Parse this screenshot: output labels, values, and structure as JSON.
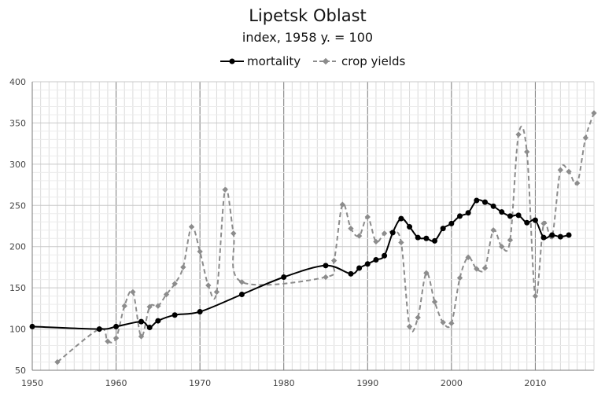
{
  "chart_data": {
    "type": "line",
    "title": "Lipetsk Oblast",
    "subtitle": "index, 1958 y. = 100",
    "xlabel": "",
    "ylabel": "",
    "xlim": [
      1950,
      2017
    ],
    "ylim": [
      50,
      400
    ],
    "x_ticks": [
      "1950",
      "1960",
      "1970",
      "1980",
      "1990",
      "2000",
      "2010"
    ],
    "y_ticks": [
      "50",
      "100",
      "150",
      "200",
      "250",
      "300",
      "350",
      "400"
    ],
    "grid": "on",
    "legend_position": "top",
    "series": [
      {
        "name": "mortality",
        "color": "#000000",
        "style": "solid",
        "marker": "circle",
        "points": [
          [
            1950,
            103
          ],
          [
            1958,
            100
          ],
          [
            1960,
            103
          ],
          [
            1963,
            109
          ],
          [
            1964,
            102
          ],
          [
            1965,
            110
          ],
          [
            1967,
            117
          ],
          [
            1970,
            121
          ],
          [
            1975,
            142
          ],
          [
            1980,
            163
          ],
          [
            1985,
            177
          ],
          [
            1988,
            167
          ],
          [
            1989,
            174
          ],
          [
            1990,
            179
          ],
          [
            1991,
            184
          ],
          [
            1992,
            189
          ],
          [
            1993,
            217
          ],
          [
            1994,
            234
          ],
          [
            1995,
            224
          ],
          [
            1996,
            211
          ],
          [
            1997,
            210
          ],
          [
            1998,
            207
          ],
          [
            1999,
            222
          ],
          [
            2000,
            228
          ],
          [
            2001,
            237
          ],
          [
            2002,
            241
          ],
          [
            2003,
            256
          ],
          [
            2004,
            254
          ],
          [
            2005,
            249
          ],
          [
            2006,
            242
          ],
          [
            2007,
            237
          ],
          [
            2008,
            238
          ],
          [
            2009,
            229
          ],
          [
            2010,
            232
          ],
          [
            2011,
            211
          ],
          [
            2012,
            214
          ],
          [
            2013,
            212
          ],
          [
            2014,
            214
          ]
        ]
      },
      {
        "name": "crop yields",
        "color": "#8c8c8c",
        "style": "dashed",
        "marker": "diamond",
        "points": [
          [
            1953,
            60
          ],
          [
            1958,
            100
          ],
          [
            1959,
            85
          ],
          [
            1960,
            89
          ],
          [
            1961,
            128
          ],
          [
            1962,
            145
          ],
          [
            1963,
            91
          ],
          [
            1964,
            127
          ],
          [
            1965,
            128
          ],
          [
            1966,
            142
          ],
          [
            1967,
            155
          ],
          [
            1968,
            175
          ],
          [
            1969,
            224
          ],
          [
            1970,
            194
          ],
          [
            1971,
            153
          ],
          [
            1972,
            145
          ],
          [
            1973,
            269
          ],
          [
            1974,
            216
          ],
          [
            1975,
            157
          ],
          [
            1985,
            163
          ],
          [
            1986,
            183
          ],
          [
            1987,
            251
          ],
          [
            1988,
            222
          ],
          [
            1989,
            213
          ],
          [
            1990,
            236
          ],
          [
            1991,
            206
          ],
          [
            1992,
            216
          ],
          [
            1993,
            217
          ],
          [
            1994,
            205
          ],
          [
            1995,
            103
          ],
          [
            1996,
            114
          ],
          [
            1997,
            168
          ],
          [
            1998,
            133
          ],
          [
            1999,
            108
          ],
          [
            2000,
            107
          ],
          [
            2001,
            162
          ],
          [
            2002,
            187
          ],
          [
            2003,
            173
          ],
          [
            2004,
            174
          ],
          [
            2005,
            220
          ],
          [
            2006,
            200
          ],
          [
            2007,
            208
          ],
          [
            2008,
            336
          ],
          [
            2009,
            315
          ],
          [
            2010,
            140
          ],
          [
            2011,
            228
          ],
          [
            2012,
            212
          ],
          [
            2013,
            293
          ],
          [
            2014,
            291
          ],
          [
            2015,
            277
          ],
          [
            2016,
            332
          ],
          [
            2017,
            362
          ]
        ]
      }
    ]
  }
}
